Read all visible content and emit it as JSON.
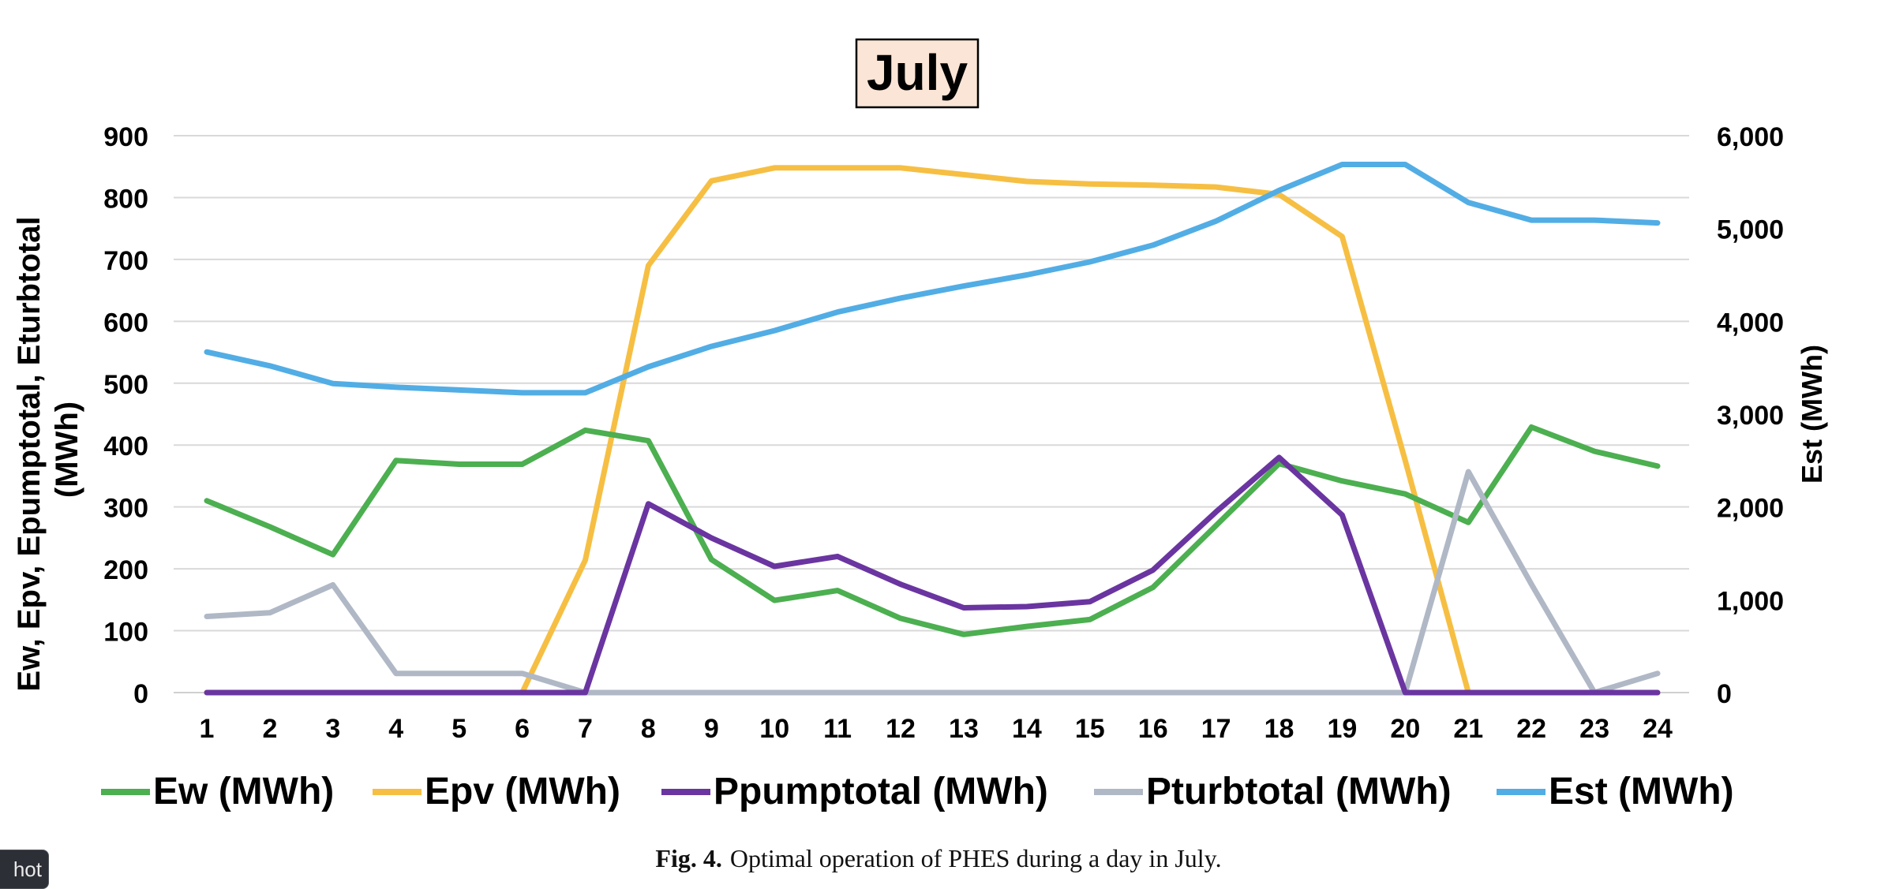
{
  "chart_data": {
    "type": "line",
    "title": "July",
    "ylabel": "Ew, Epv, Epumptotal, Eturbtotal (MWh)",
    "ylabel_line1": "Ew, Epv, Epumptotal, Eturbtotal",
    "ylabel_line2": "(MWh)",
    "y2label": "Est (MWh)",
    "x": [
      1,
      2,
      3,
      4,
      5,
      6,
      7,
      8,
      9,
      10,
      11,
      12,
      13,
      14,
      15,
      16,
      17,
      18,
      19,
      20,
      21,
      22,
      23,
      24
    ],
    "x_tick_labels": [
      "1",
      "2",
      "3",
      "4",
      "5",
      "6",
      "7",
      "8",
      "9",
      "10",
      "11",
      "12",
      "13",
      "14",
      "15",
      "16",
      "17",
      "18",
      "19",
      "20",
      "21",
      "22",
      "23",
      "24"
    ],
    "ylim": [
      0,
      900
    ],
    "y_ticks": [
      0,
      100,
      200,
      300,
      400,
      500,
      600,
      700,
      800,
      900
    ],
    "y_tick_labels": [
      "0",
      "100",
      "200",
      "300",
      "400",
      "500",
      "600",
      "700",
      "800",
      "900"
    ],
    "y2lim": [
      0,
      6000
    ],
    "y2_ticks": [
      0,
      1000,
      2000,
      3000,
      4000,
      5000,
      6000
    ],
    "y2_tick_labels": [
      "0",
      "1,000",
      "2,000",
      "3,000",
      "4,000",
      "5,000",
      "6,000"
    ],
    "grid": true,
    "legend_position": "bottom",
    "series": [
      {
        "name": "Ew (MWh)",
        "axis": "left",
        "color": "#4caf50",
        "values": [
          310,
          268,
          223,
          375,
          369,
          369,
          424,
          407,
          215,
          149,
          165,
          120,
          94,
          107,
          118,
          170,
          270,
          370,
          342,
          321,
          275,
          429,
          390,
          366
        ]
      },
      {
        "name": "Epv (MWh)",
        "axis": "left",
        "color": "#f6bf43",
        "values": [
          0,
          0,
          0,
          0,
          0,
          0,
          214,
          690,
          827,
          848,
          848,
          848,
          837,
          826,
          822,
          820,
          817,
          805,
          737,
          375,
          0,
          0,
          0,
          0
        ]
      },
      {
        "name": "Ppumptotal (MWh)",
        "axis": "left",
        "color": "#6a35a0",
        "values": [
          0,
          0,
          0,
          0,
          0,
          0,
          0,
          305,
          250,
          204,
          220,
          175,
          137,
          139,
          147,
          198,
          292,
          380,
          287,
          0,
          0,
          0,
          0,
          0
        ]
      },
      {
        "name": "Pturbtotal (MWh)",
        "axis": "left",
        "color": "#b0b8c6",
        "values": [
          123,
          129,
          174,
          31,
          31,
          31,
          0,
          0,
          0,
          0,
          0,
          0,
          0,
          0,
          0,
          0,
          0,
          0,
          0,
          0,
          357,
          175,
          0,
          31
        ]
      },
      {
        "name": "Est (MWh)",
        "axis": "right",
        "color": "#52ade5",
        "values": [
          3670,
          3520,
          3330,
          3290,
          3260,
          3230,
          3230,
          3510,
          3730,
          3900,
          4100,
          4250,
          4380,
          4500,
          4640,
          4820,
          5080,
          5410,
          5690,
          5690,
          5280,
          5090,
          5090,
          5060
        ]
      }
    ]
  },
  "caption": {
    "label": "Fig. 4.",
    "text": "Optimal operation of PHES during a day in July."
  },
  "corner_button": {
    "label": "hot"
  }
}
